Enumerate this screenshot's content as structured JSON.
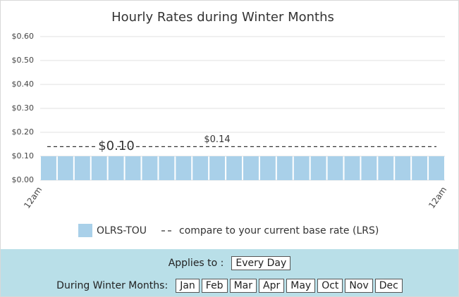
{
  "chart_data": {
    "type": "bar",
    "title": "Hourly Rates during Winter Months",
    "categories": [
      "12am",
      null,
      null,
      null,
      null,
      null,
      null,
      null,
      null,
      null,
      null,
      null,
      null,
      null,
      null,
      null,
      null,
      null,
      null,
      null,
      null,
      null,
      null,
      "12am"
    ],
    "series": [
      {
        "name": "OLRS-TOU",
        "color": "#a9d0e9",
        "values": [
          0.1,
          0.1,
          0.1,
          0.1,
          0.1,
          0.1,
          0.1,
          0.1,
          0.1,
          0.1,
          0.1,
          0.1,
          0.1,
          0.1,
          0.1,
          0.1,
          0.1,
          0.1,
          0.1,
          0.1,
          0.1,
          0.1,
          0.1,
          0.1
        ]
      }
    ],
    "annotation": {
      "value": 0.1,
      "label": "$0.10"
    },
    "reference_line": {
      "name": "compare to your current base rate (LRS)",
      "value": 0.14,
      "label": "$0.14",
      "color": "#333333"
    },
    "ylim": [
      0,
      0.6
    ],
    "yticks": [
      {
        "value": 0,
        "label": "$0.00"
      },
      {
        "value": 0.1,
        "label": "$0.10"
      },
      {
        "value": 0.2,
        "label": "$0.20"
      },
      {
        "value": 0.3,
        "label": "$0.30"
      },
      {
        "value": 0.4,
        "label": "$0.40"
      },
      {
        "value": 0.5,
        "label": "$0.50"
      },
      {
        "value": 0.6,
        "label": "$0.60"
      }
    ],
    "grid": true
  },
  "controls": {
    "applies_label": "Applies to :",
    "applies_value": "Every Day",
    "months_label": "During Winter Months:",
    "months": [
      "Jan",
      "Feb",
      "Mar",
      "Apr",
      "May",
      "Oct",
      "Nov",
      "Dec"
    ]
  }
}
